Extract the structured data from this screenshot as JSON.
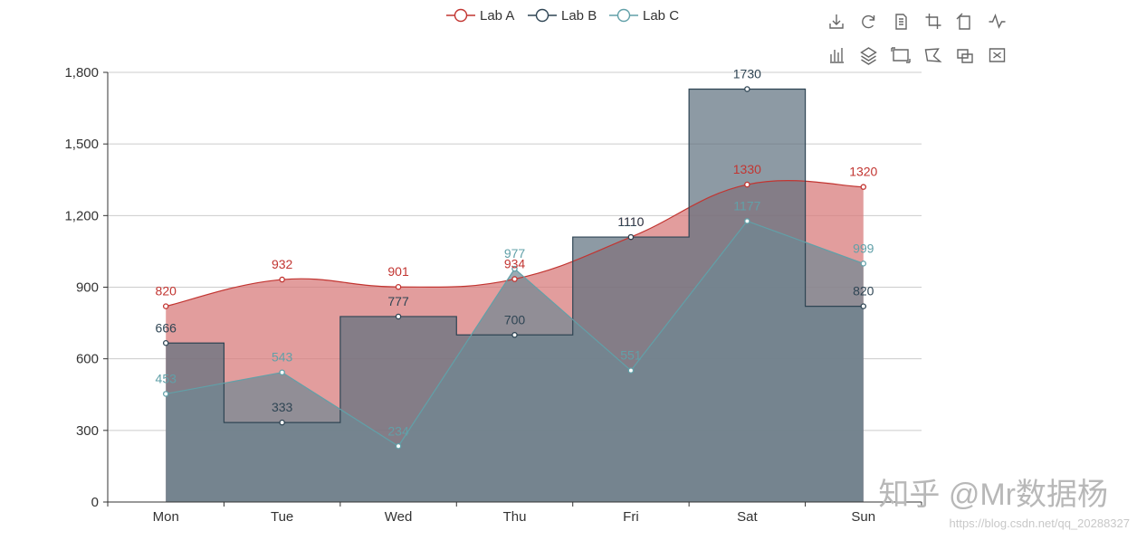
{
  "chart_data": {
    "type": "line",
    "categories": [
      "Mon",
      "Tue",
      "Wed",
      "Thu",
      "Fri",
      "Sat",
      "Sun"
    ],
    "yticks": [
      "0",
      "300",
      "600",
      "900",
      "1,200",
      "1,500",
      "1,800"
    ],
    "ylim": [
      0,
      1800
    ],
    "grid": true,
    "legend_position": "top-center",
    "series": [
      {
        "name": "Lab A",
        "values": [
          820,
          932,
          901,
          934,
          1110,
          1330,
          1320
        ],
        "style": "smooth",
        "color": "#c23531",
        "area_color": "#d87c7c"
      },
      {
        "name": "Lab B",
        "values": [
          666,
          333,
          777,
          700,
          1110,
          1730,
          820
        ],
        "style": "step-middle",
        "color": "#2f4554",
        "area_color": "#5d6f7e"
      },
      {
        "name": "Lab C",
        "values": [
          453,
          543,
          234,
          977,
          551,
          1177,
          999
        ],
        "style": "straight",
        "color": "#61a0a8",
        "area_color": "#6f8793"
      }
    ]
  },
  "toolbox": {
    "items": [
      "download-icon",
      "refresh-icon",
      "data-view-icon",
      "zoom-icon",
      "zoom-reset-icon",
      "line-chart-icon",
      "bar-chart-icon",
      "stack-icon",
      "rect-select-icon",
      "polygon-select-icon",
      "keep-select-icon",
      "clear-select-icon"
    ]
  },
  "watermark": {
    "main": "知乎 @Mr数据杨",
    "url": "https://blog.csdn.net/qq_20288327"
  }
}
